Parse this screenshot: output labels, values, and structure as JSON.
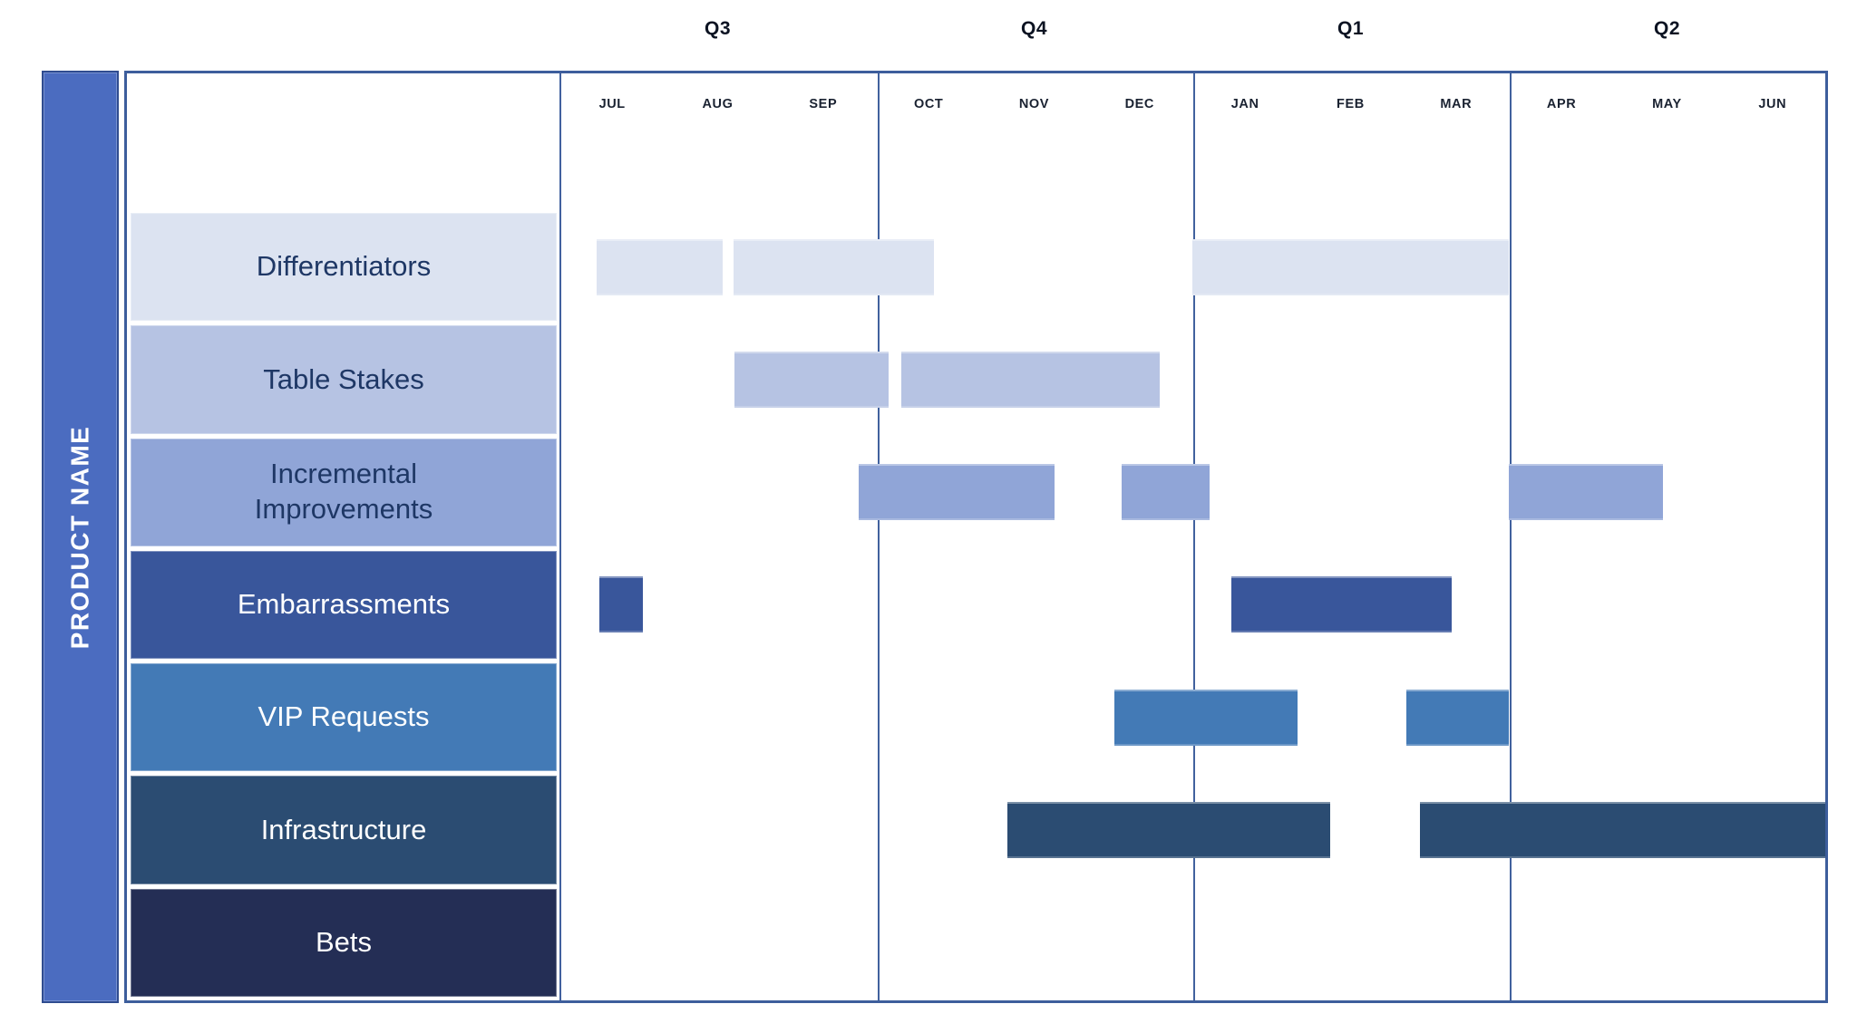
{
  "sidebar": {
    "title": "PRODUCT NAME"
  },
  "chart_data": {
    "type": "bar",
    "subtype": "gantt_roadmap",
    "x_axis": {
      "quarter_labels": [
        "Q3",
        "Q4",
        "Q1",
        "Q2"
      ],
      "month_labels": [
        "JUL",
        "AUG",
        "SEP",
        "OCT",
        "NOV",
        "DEC",
        "JAN",
        "FEB",
        "MAR",
        "APR",
        "MAY",
        "JUN"
      ],
      "unit": "month-index (0 = start of JUL, 12 = end of JUN)",
      "range": [
        0,
        12
      ],
      "quarter_dividers_at": [
        3,
        6,
        9
      ]
    },
    "categories": [
      "Differentiators",
      "Table Stakes",
      "Incremental Improvements",
      "Embarrassments",
      "VIP Requests",
      "Infrastructure",
      "Bets"
    ],
    "series": [
      {
        "name": "Differentiators",
        "label": "Differentiators",
        "color": "#dce3f1",
        "label_text_color": "#1e3765",
        "bars": [
          {
            "start": 0.35,
            "end": 1.55
          },
          {
            "start": 1.65,
            "end": 3.55
          },
          {
            "start": 6.0,
            "end": 9.0
          }
        ]
      },
      {
        "name": "Table Stakes",
        "label": "Table Stakes",
        "color": "#b6c3e3",
        "label_text_color": "#1e3765",
        "bars": [
          {
            "start": 1.66,
            "end": 3.12
          },
          {
            "start": 3.24,
            "end": 5.69
          }
        ]
      },
      {
        "name": "Incremental Improvements",
        "label": "Incremental\nImprovements",
        "color": "#90a5d7",
        "label_text_color": "#1e3765",
        "bars": [
          {
            "start": 2.84,
            "end": 4.69
          },
          {
            "start": 5.33,
            "end": 6.16
          },
          {
            "start": 9.0,
            "end": 10.46
          }
        ]
      },
      {
        "name": "Embarrassments",
        "label": "Embarrassments",
        "color": "#39569b",
        "label_text_color": "#ffffff",
        "bars": [
          {
            "start": 0.38,
            "end": 0.79
          },
          {
            "start": 6.37,
            "end": 8.46
          }
        ]
      },
      {
        "name": "VIP Requests",
        "label": "VIP Requests",
        "color": "#437ab6",
        "label_text_color": "#ffffff",
        "bars": [
          {
            "start": 5.26,
            "end": 7.0
          },
          {
            "start": 8.03,
            "end": 9.0
          }
        ]
      },
      {
        "name": "Infrastructure",
        "label": "Infrastructure",
        "color": "#2b4c72",
        "label_text_color": "#ffffff",
        "bars": [
          {
            "start": 4.25,
            "end": 7.31
          },
          {
            "start": 8.16,
            "end": 12.0
          }
        ]
      },
      {
        "name": "Bets",
        "label": "Bets",
        "color": "#242e55",
        "label_text_color": "#ffffff",
        "bars": []
      }
    ],
    "legend": {
      "visible": false
    },
    "grid": {
      "vertical_quarter_lines": true,
      "horizontal_lines": false
    }
  },
  "colors": {
    "background": "#ffffff",
    "sidebar_fill": "#4b6cc0",
    "sidebar_border": "#2f4c90",
    "panel_border": "#3d5e9c",
    "quarter_divider": "#41619e",
    "quarter_label_text": "#0c1322",
    "month_label_text": "#1a2231"
  }
}
